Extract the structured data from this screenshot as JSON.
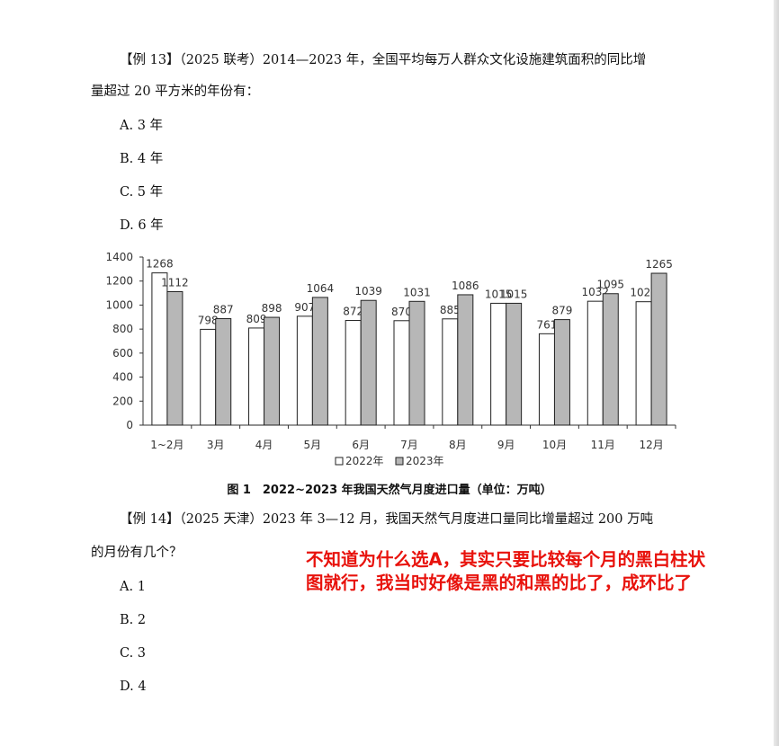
{
  "q13": {
    "line1": "【例 13】（2025 联考）2014—2023 年，全国平均每万人群众文化设施建筑面积的同比增",
    "line2": "量超过 20 平方米的年份有：",
    "options": [
      "A. 3 年",
      "B. 4 年",
      "C. 5 年",
      "D. 6 年"
    ]
  },
  "chart_caption": "图 1　2022~2023 年我国天然气月度进口量（单位：万吨）",
  "chart_data": {
    "type": "bar",
    "categories": [
      "1~2月",
      "3月",
      "4月",
      "5月",
      "6月",
      "7月",
      "8月",
      "9月",
      "10月",
      "11月",
      "12月"
    ],
    "series": [
      {
        "name": "2022年",
        "values": [
          1268,
          798,
          809,
          907,
          872,
          870,
          885,
          1015,
          761,
          1032,
          1028
        ],
        "color": "#ffffff"
      },
      {
        "name": "2023年",
        "values": [
          1112,
          887,
          898,
          1064,
          1039,
          1031,
          1086,
          1015,
          879,
          1095,
          1265
        ],
        "color": "#b7b7b7"
      }
    ],
    "yticks": [
      "0",
      "200",
      "400",
      "600",
      "800",
      "1000",
      "1200",
      "1400"
    ],
    "ylim": [
      0,
      1400
    ],
    "legend_position": "bottom"
  },
  "q14": {
    "line1": "【例 14】（2025 天津）2023 年 3—12 月，我国天然气月度进口量同比增量超过 200 万吨",
    "line2": "的月份有几个？",
    "options": [
      "A. 1",
      "B. 2",
      "C. 3",
      "D. 4"
    ]
  },
  "note": {
    "line1": "不知道为什么选A，其实只要比较每个月的黑白柱状",
    "line2": "图就行，我当时好像是黑的和黑的比了，成环比了"
  }
}
